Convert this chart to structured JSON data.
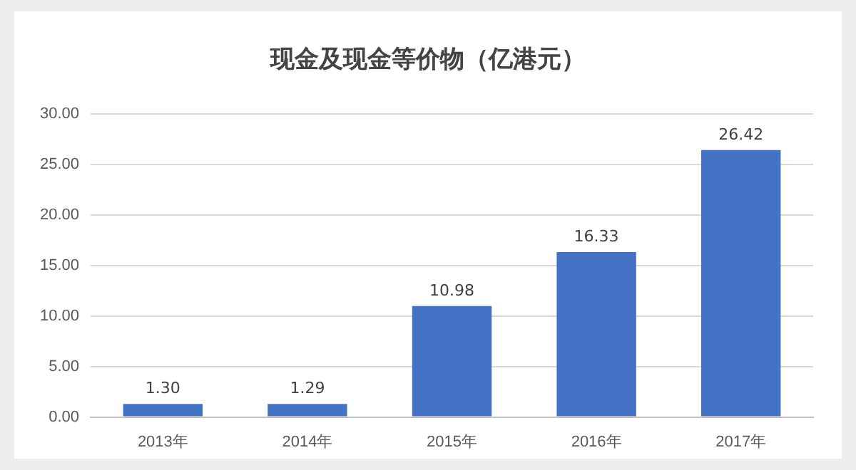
{
  "chart_data": {
    "type": "bar",
    "title": "现金及现金等价物（亿港元）",
    "categories": [
      "2013年",
      "2014年",
      "2015年",
      "2016年",
      "2017年"
    ],
    "values": [
      1.3,
      1.29,
      10.98,
      16.33,
      26.42
    ],
    "value_labels": [
      "1.30",
      "1.29",
      "10.98",
      "16.33",
      "26.42"
    ],
    "color": "#4472c4",
    "ylim": [
      0,
      30
    ],
    "yticks": [
      {
        "value": 0,
        "label": "0.00"
      },
      {
        "value": 5,
        "label": "5.00"
      },
      {
        "value": 10,
        "label": "10.00"
      },
      {
        "value": 15,
        "label": "15.00"
      },
      {
        "value": 20,
        "label": "20.00"
      },
      {
        "value": 25,
        "label": "25.00"
      },
      {
        "value": 30,
        "label": "30.00"
      }
    ],
    "grid": "y"
  }
}
